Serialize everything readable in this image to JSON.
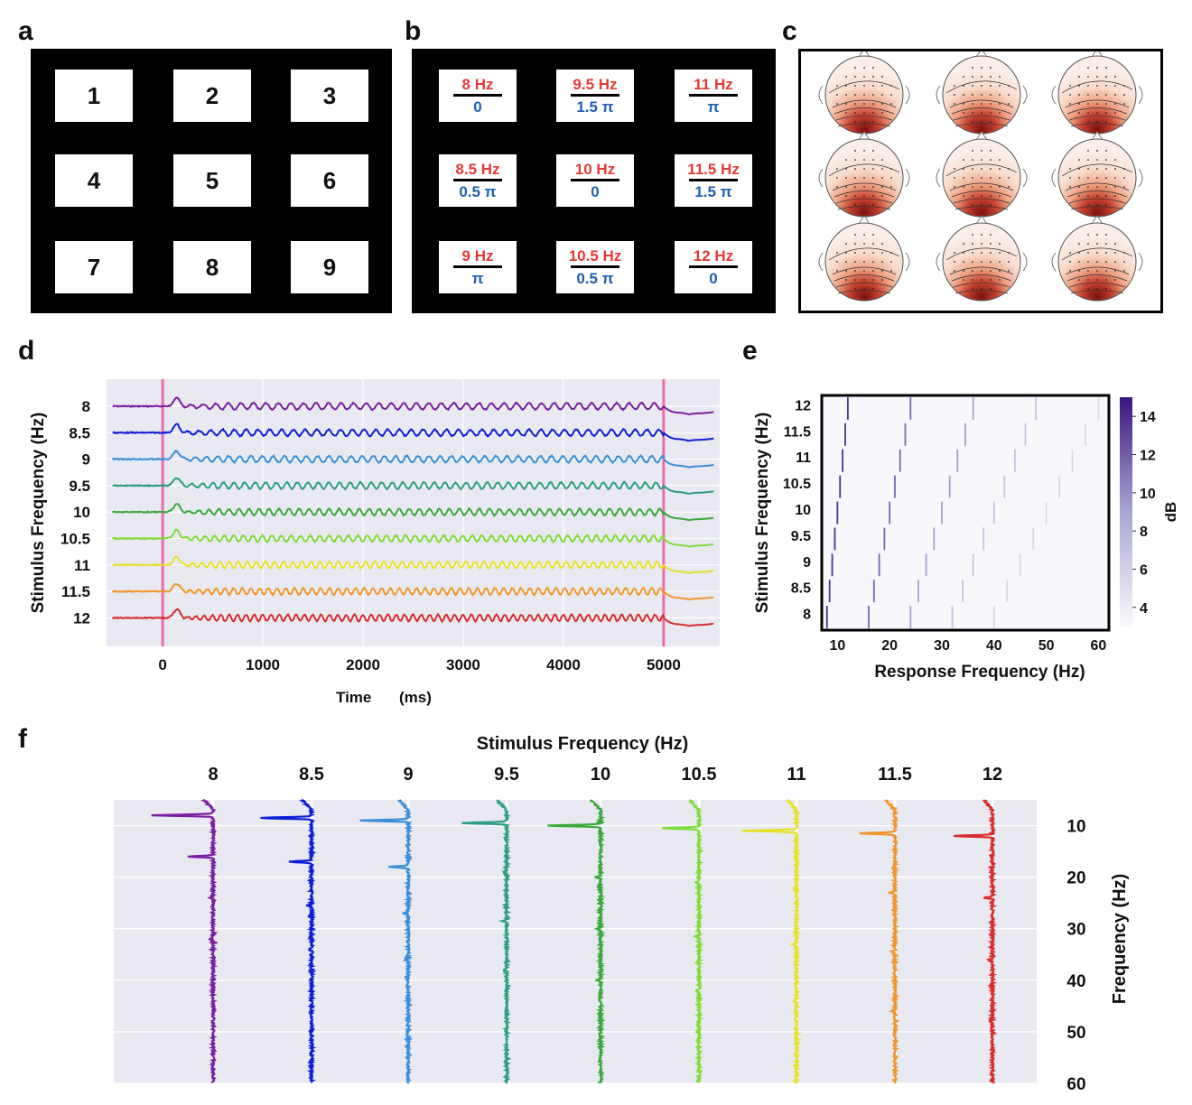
{
  "panel_labels": {
    "a": "a",
    "b": "b",
    "c": "c",
    "d": "d",
    "e": "e",
    "f": "f"
  },
  "panel_a": {
    "cells": [
      "1",
      "2",
      "3",
      "4",
      "5",
      "6",
      "7",
      "8",
      "9"
    ]
  },
  "panel_b": {
    "cells": [
      {
        "freq": "8 Hz",
        "phase": "0"
      },
      {
        "freq": "9.5 Hz",
        "phase": "1.5 π"
      },
      {
        "freq": "11 Hz",
        "phase": "π"
      },
      {
        "freq": "8.5 Hz",
        "phase": "0.5 π"
      },
      {
        "freq": "10 Hz",
        "phase": "0"
      },
      {
        "freq": "11.5 Hz",
        "phase": "1.5 π"
      },
      {
        "freq": "9 Hz",
        "phase": "π"
      },
      {
        "freq": "10.5 Hz",
        "phase": "0.5 π"
      },
      {
        "freq": "12 Hz",
        "phase": "0"
      }
    ]
  },
  "panel_c": {
    "count": 9,
    "description": "topographic scalp maps"
  },
  "colors": {
    "series": [
      "#7b1fa2",
      "#0d1fd6",
      "#3b8fd9",
      "#2e9e86",
      "#3aa83a",
      "#7ddc3a",
      "#e6e22a",
      "#f0962e",
      "#d62e2e"
    ],
    "stim_line": "#f06aae",
    "plot_bg": "#e9e9f1",
    "heat": "#3b1f8f"
  },
  "chart_data": [
    {
      "id": "d",
      "type": "line",
      "title": "",
      "xlabel": "Time    (ms)",
      "ylabel": "Stimulus Frequency (Hz)",
      "xlim": [
        -560,
        5560
      ],
      "xticks": [
        "0",
        "1000",
        "2000",
        "3000",
        "4000",
        "5000"
      ],
      "xtick_values": [
        0,
        1000,
        2000,
        3000,
        4000,
        5000
      ],
      "stimulus_onset": 0,
      "stimulus_offset": 5000,
      "series": [
        {
          "name": "8",
          "freq": 8
        },
        {
          "name": "8.5",
          "freq": 8.5
        },
        {
          "name": "9",
          "freq": 9
        },
        {
          "name": "9.5",
          "freq": 9.5
        },
        {
          "name": "10",
          "freq": 10
        },
        {
          "name": "10.5",
          "freq": 10.5
        },
        {
          "name": "11",
          "freq": 11
        },
        {
          "name": "11.5",
          "freq": 11.5
        },
        {
          "name": "12",
          "freq": 12
        }
      ]
    },
    {
      "id": "e",
      "type": "heatmap",
      "xlabel": "Response Frequency (Hz)",
      "ylabel": "Stimulus Frequency (Hz)",
      "xlim": [
        7,
        62
      ],
      "xticks": [
        "10",
        "20",
        "30",
        "40",
        "50",
        "60"
      ],
      "xtick_values": [
        10,
        20,
        30,
        40,
        50,
        60
      ],
      "yticks": [
        "8",
        "8.5",
        "9",
        "9.5",
        "10",
        "10.5",
        "11",
        "11.5",
        "12"
      ],
      "ytick_values": [
        8,
        8.5,
        9,
        9.5,
        10,
        10.5,
        11,
        11.5,
        12
      ],
      "colorbar_label": "dB",
      "colorbar_ticks": [
        "4",
        "6",
        "8",
        "10",
        "12",
        "14"
      ],
      "colorbar_values": [
        4,
        6,
        8,
        10,
        12,
        14
      ],
      "colorbar_range": [
        3,
        15
      ],
      "harmonics": [
        1,
        2,
        3,
        4,
        5
      ],
      "harmonic_db": [
        14,
        11,
        8,
        6,
        4.5
      ]
    },
    {
      "id": "f",
      "type": "line",
      "title": "Stimulus Frequency (Hz)",
      "ylabel": "Frequency (Hz)",
      "ylim": [
        5,
        60
      ],
      "yticks": [
        "10",
        "20",
        "30",
        "40",
        "50",
        "60"
      ],
      "ytick_values": [
        10,
        20,
        30,
        40,
        50,
        60
      ],
      "columns": [
        "8",
        "8.5",
        "9",
        "9.5",
        "10",
        "10.5",
        "11",
        "11.5",
        "12"
      ],
      "column_freqs": [
        8,
        8.5,
        9,
        9.5,
        10,
        10.5,
        11,
        11.5,
        12
      ],
      "fundamental_peak_amplitude": [
        1.0,
        0.85,
        0.8,
        0.75,
        0.85,
        0.6,
        0.9,
        0.6,
        0.65
      ],
      "second_harmonic_amplitude": [
        0.4,
        0.35,
        0.3,
        0.05,
        0.08,
        0.05,
        0.05,
        0.1,
        0.15
      ]
    }
  ]
}
